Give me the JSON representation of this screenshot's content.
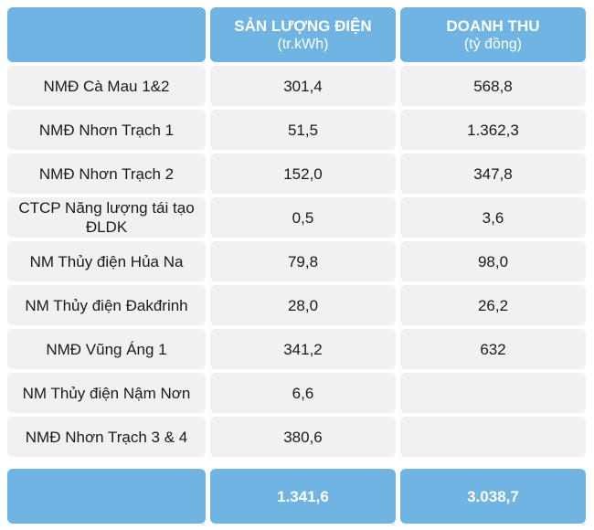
{
  "header": {
    "col1_title": "SẢN LƯỢNG ĐIỆN",
    "col1_unit": "(tr.kWh)",
    "col2_title": "DOANH THU",
    "col2_unit": "(tỷ đồng)"
  },
  "rows": [
    {
      "name": "NMĐ Cà Mau 1&2",
      "output": "301,4",
      "revenue": "568,8"
    },
    {
      "name": "NMĐ Nhơn Trạch 1",
      "output": "51,5",
      "revenue": "1.362,3"
    },
    {
      "name": "NMĐ Nhơn Trạch 2",
      "output": "152,0",
      "revenue": "347,8"
    },
    {
      "name": "CTCP Năng lượng tái tạo ĐLDK",
      "output": "0,5",
      "revenue": "3,6"
    },
    {
      "name": "NM Thủy điện Hủa Na",
      "output": "79,8",
      "revenue": "98,0"
    },
    {
      "name": "NM Thủy điện Đakđrinh",
      "output": "28,0",
      "revenue": "26,2"
    },
    {
      "name": "NMĐ Vũng Áng 1",
      "output": "341,2",
      "revenue": "632"
    },
    {
      "name": "NM Thủy điện Nậm Nơn",
      "output": "6,6",
      "revenue": ""
    },
    {
      "name": "NMĐ Nhơn Trạch 3 & 4",
      "output": "380,6",
      "revenue": ""
    }
  ],
  "total": {
    "label": "",
    "output": "1.341,6",
    "revenue": "3.038,7"
  }
}
